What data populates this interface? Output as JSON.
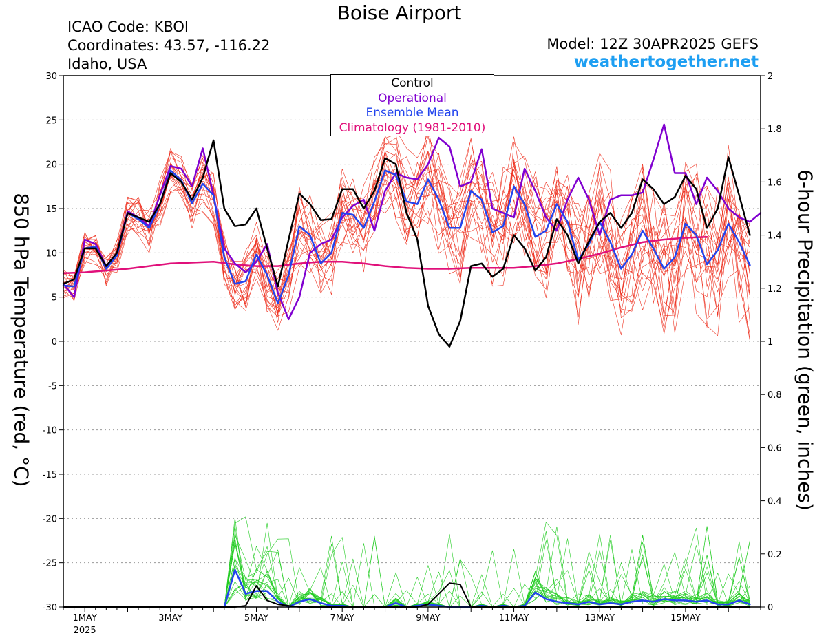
{
  "header": {
    "title": "Boise Airport",
    "icao": "ICAO Code: KBOI",
    "coordinates": "Coordinates: 43.57, -116.22",
    "region": "Idaho, USA",
    "model": "Model: 12Z 30APR2025 GEFS",
    "site": "weathertogether.net"
  },
  "legend": {
    "control": "Control",
    "operational": "Operational",
    "ensemble_mean": "Ensemble Mean",
    "climatology": "Climatology (1981-2010)"
  },
  "colors": {
    "control": "#000000",
    "operational": "#8000d0",
    "ensemble_mean": "#2244ee",
    "climatology": "#e0107a",
    "members_temp": "#ee3322",
    "members_precip": "#22cc22",
    "site": "#1e9ff2"
  },
  "chart_data": {
    "type": "line",
    "title": "Boise Airport",
    "ylabel_left": "850 hPa Temperature (red, °C)",
    "ylabel_right": "6-hour Precipitation (green, inches)",
    "x_range_days": [
      0.5,
      16.75
    ],
    "x_ticks": [
      {
        "day": 1,
        "label": "1MAY",
        "sub": "2025"
      },
      {
        "day": 3,
        "label": "3MAY"
      },
      {
        "day": 5,
        "label": "5MAY"
      },
      {
        "day": 7,
        "label": "7MAY"
      },
      {
        "day": 9,
        "label": "9MAY"
      },
      {
        "day": 11,
        "label": "11MAY"
      },
      {
        "day": 13,
        "label": "13MAY"
      },
      {
        "day": 15,
        "label": "15MAY"
      }
    ],
    "ylim_left": [
      -30,
      30
    ],
    "y_ticks_left": [
      30,
      25,
      20,
      15,
      10,
      5,
      0,
      -5,
      -10,
      -15,
      -20,
      -25,
      -30
    ],
    "ylim_right": [
      0,
      2
    ],
    "y_ticks_right": [
      2,
      1.8,
      1.6,
      1.4,
      1.2,
      1,
      0.8,
      0.6,
      0.4,
      0.2,
      0
    ],
    "grid": "dotted horizontal",
    "temperature": {
      "step_days": 0.25,
      "start_day": 0.5,
      "control": [
        6.5,
        7,
        10.5,
        10.5,
        8.5,
        10,
        14.5,
        14,
        13.5,
        15.5,
        19,
        18,
        16,
        18.5,
        22.7,
        15,
        13,
        13.2,
        15,
        10.5,
        6.2,
        11.5,
        16.7,
        15.5,
        13.7,
        13.8,
        17.2,
        17.2,
        15,
        17,
        20.7,
        20,
        14.5,
        11.5,
        4,
        0.8,
        -0.6,
        2.3,
        8.5,
        8.8,
        7.3,
        8.2,
        12,
        10.5,
        8,
        9.5,
        13.8,
        12,
        8.8,
        11.3,
        13.5,
        14.5,
        12.8,
        14.5,
        18.3,
        17.2,
        15.5,
        16.3,
        18.7,
        17.2,
        12.8,
        15,
        20.8,
        16.5,
        12
      ],
      "operational": [
        6.5,
        5,
        11.5,
        11,
        8.5,
        10,
        14.7,
        14,
        13,
        16.5,
        19.8,
        19.5,
        17.5,
        21.8,
        16.5,
        10.5,
        8.8,
        7.8,
        9,
        11,
        5.5,
        2.5,
        5,
        10,
        11,
        11.5,
        14,
        15.3,
        16,
        12.5,
        17,
        19,
        18.5,
        18.3,
        20,
        23,
        22,
        17.5,
        18,
        21.7,
        15,
        14.5,
        14,
        19.5,
        17,
        14,
        12.5,
        16,
        18.5,
        16,
        12,
        16,
        16.5,
        16.5,
        16.8,
        20.5,
        24.5,
        19,
        19,
        15.5,
        18.5,
        17,
        15,
        14,
        13.5,
        14.5
      ],
      "ensemble_mean": [
        6.3,
        6.2,
        10.5,
        10.7,
        8.2,
        9.7,
        14.5,
        13.8,
        12.8,
        15.5,
        19.3,
        18.2,
        15.6,
        17.8,
        16.5,
        9.5,
        6.5,
        6.8,
        9.8,
        7.5,
        4.3,
        7.5,
        13,
        12,
        8.8,
        10,
        14.5,
        14.3,
        12.8,
        15.8,
        19.3,
        18.8,
        15.8,
        15.5,
        18.3,
        16,
        12.8,
        12.8,
        17,
        16,
        12.3,
        13,
        17.5,
        15.5,
        11.8,
        12.5,
        15.5,
        13.5,
        9.2,
        11,
        13.5,
        11.2,
        8.2,
        9.8,
        12.5,
        10.5,
        8.2,
        9.5,
        13.3,
        12,
        8.7,
        10.3,
        13.3,
        11.2,
        8.6
      ],
      "climatology": [
        7.7,
        7.8,
        8,
        8.2,
        8.5,
        8.8,
        8.9,
        9,
        8.7,
        8.5,
        8.5,
        8.8,
        9,
        9,
        8.8,
        8.5,
        8.3,
        8.2,
        8.2,
        8.3,
        8.3,
        8.3,
        8.5,
        8.8,
        9.3,
        9.9,
        10.6,
        11.2,
        11.5,
        11.7,
        11.8
      ]
    },
    "precipitation": {
      "step_days": 0.25,
      "start_day": 0.5,
      "control": [
        0,
        0,
        0,
        0,
        0,
        0,
        0,
        0,
        0,
        0,
        0,
        0,
        0,
        0,
        0,
        0,
        0,
        0.005,
        0.08,
        0.025,
        0.01,
        0.005,
        0,
        0,
        0,
        0,
        0,
        0,
        0,
        0,
        0,
        0,
        0,
        0,
        0.01,
        0.05,
        0.09,
        0.085,
        0,
        0,
        0,
        0,
        0,
        0,
        0,
        0,
        0,
        0,
        0,
        0,
        0,
        0,
        0,
        0,
        0,
        0,
        0,
        0,
        0,
        0,
        0,
        0,
        0,
        0,
        0
      ],
      "ensemble_mean": [
        0,
        0,
        0,
        0,
        0,
        0,
        0,
        0,
        0,
        0,
        0,
        0,
        0,
        0,
        0,
        0,
        0.14,
        0.05,
        0.06,
        0.06,
        0.02,
        0,
        0.02,
        0.03,
        0.015,
        0.005,
        0.005,
        0,
        0,
        0,
        0,
        0.015,
        0,
        0.005,
        0.01,
        0.005,
        0,
        0,
        0,
        0.005,
        0,
        0.005,
        0,
        0.005,
        0.055,
        0.03,
        0.02,
        0.015,
        0.01,
        0.02,
        0.01,
        0.015,
        0.01,
        0.02,
        0.025,
        0.02,
        0.03,
        0.025,
        0.025,
        0.02,
        0.025,
        0.01,
        0.01,
        0.025,
        0.01
      ]
    }
  }
}
